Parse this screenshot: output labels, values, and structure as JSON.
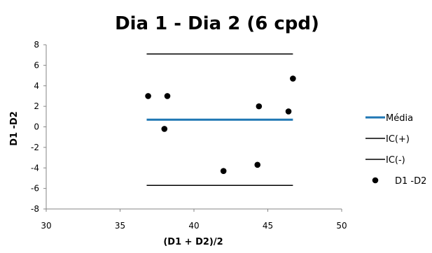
{
  "chart_data": {
    "type": "scatter",
    "title": "Dia 1 - Dia 2 (6 cpd)",
    "xlabel": "(D1 + D2)/2",
    "ylabel": "D1 -D2",
    "xlim": [
      30,
      50
    ],
    "ylim": [
      -8,
      8
    ],
    "xticks": [
      30,
      35,
      40,
      45,
      50
    ],
    "yticks": [
      -8,
      -6,
      -4,
      -2,
      0,
      2,
      4,
      6,
      8
    ],
    "grid": false,
    "legend_position": "right",
    "series": [
      {
        "name": "Média",
        "kind": "line",
        "color": "#1f77b4",
        "x": [
          36.8,
          46.7
        ],
        "y": [
          0.7,
          0.7
        ]
      },
      {
        "name": "IC(+)",
        "kind": "line",
        "color": "#000000",
        "x": [
          36.8,
          46.7
        ],
        "y": [
          7.1,
          7.1
        ]
      },
      {
        "name": "IC(-)",
        "kind": "line",
        "color": "#000000",
        "x": [
          36.8,
          46.7
        ],
        "y": [
          -5.7,
          -5.7
        ]
      },
      {
        "name": "D1 -D2",
        "kind": "scatter",
        "color": "#000000",
        "x": [
          36.9,
          38.2,
          38.0,
          42.0,
          44.3,
          44.4,
          46.4,
          46.7
        ],
        "y": [
          3.0,
          3.0,
          -0.2,
          -4.3,
          -3.7,
          2.0,
          1.5,
          4.7
        ]
      }
    ]
  }
}
